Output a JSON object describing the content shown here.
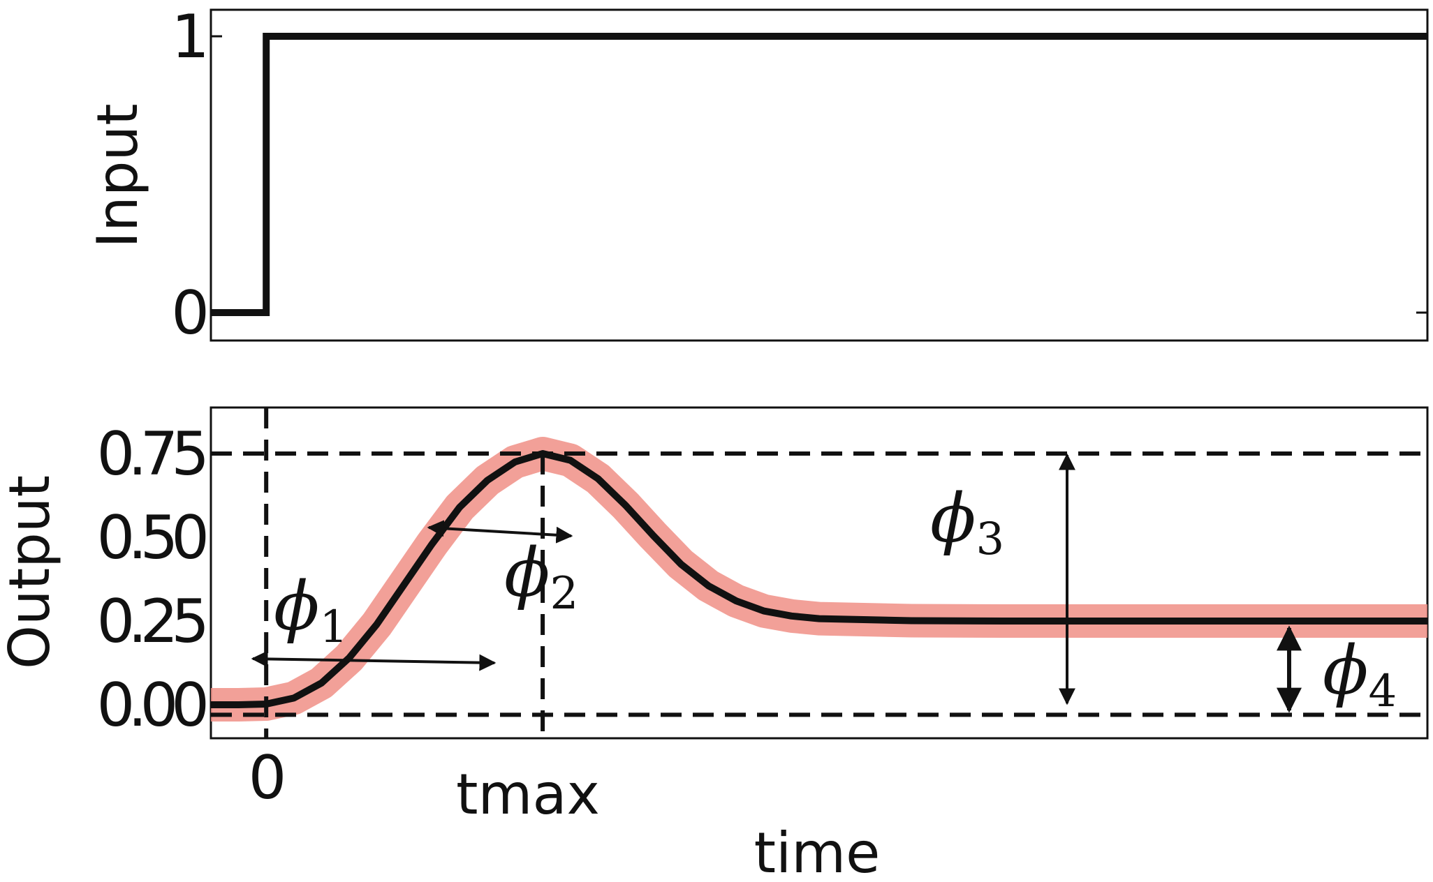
{
  "chart_data": [
    {
      "type": "line",
      "ylabel": "Input",
      "yticks": [
        0,
        1
      ],
      "ytick_labels": [
        "0",
        "1"
      ],
      "ylim": [
        -0.1,
        1.1
      ],
      "xlim": [
        -0.6,
        12.6
      ],
      "series": [
        {
          "x": [
            -0.6,
            0,
            0,
            12.6
          ],
          "y": [
            0,
            0,
            1,
            1
          ]
        }
      ]
    },
    {
      "type": "line",
      "ylabel": "Output",
      "xlabel": "time",
      "yticks": [
        0.0,
        0.25,
        0.5,
        0.75
      ],
      "ytick_labels": [
        "0.00",
        "0.25",
        "0.50",
        "0.75"
      ],
      "xticks": [
        0,
        3
      ],
      "xtick_labels": [
        "0",
        "tmax"
      ],
      "ylim": [
        -0.1,
        0.9
      ],
      "xlim": [
        -0.6,
        12.6
      ],
      "series": [
        {
          "x": [
            -0.6,
            -0.3,
            0,
            0.3,
            0.6,
            0.9,
            1.2,
            1.5,
            1.8,
            2.1,
            2.4,
            2.7,
            3.0,
            3.3,
            3.6,
            3.9,
            4.2,
            4.5,
            4.8,
            5.1,
            5.4,
            5.7,
            6.0,
            7.0,
            8.0,
            9.0,
            10.0,
            11.0,
            12.0,
            12.6
          ],
          "y": [
            0.0,
            0.0,
            0.002,
            0.02,
            0.065,
            0.14,
            0.24,
            0.36,
            0.48,
            0.59,
            0.67,
            0.725,
            0.75,
            0.73,
            0.675,
            0.595,
            0.505,
            0.42,
            0.355,
            0.31,
            0.28,
            0.265,
            0.257,
            0.251,
            0.25,
            0.25,
            0.25,
            0.25,
            0.25,
            0.25
          ]
        }
      ],
      "band_color": "#f08f86",
      "line_color": "#111111",
      "reference_lines": {
        "hlines": [
          0.75,
          -0.03
        ],
        "vlines": [
          0,
          3
        ]
      },
      "annotations": [
        {
          "label": "ϕ",
          "subscript": "1"
        },
        {
          "label": "ϕ",
          "subscript": "2"
        },
        {
          "label": "ϕ",
          "subscript": "3"
        },
        {
          "label": "ϕ",
          "subscript": "4"
        }
      ]
    }
  ]
}
